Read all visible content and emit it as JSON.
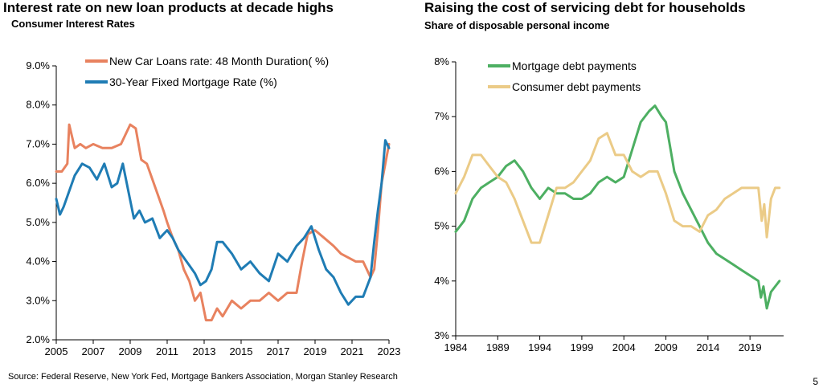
{
  "left": {
    "title": "Interest rate on new loan products at decade highs",
    "subtitle": "Consumer Interest Rates"
  },
  "right": {
    "title": "Raising the cost of servicing debt for households",
    "subtitle": "Share of disposable personal income"
  },
  "footer": {
    "source": "Source: Federal Reserve, New York Fed, Mortgage Bankers Association, Morgan Stanley Research",
    "page_number": "5"
  },
  "colors": {
    "car_loans": "#E8825F",
    "mortgage_rate": "#1F7CB4",
    "mortgage_debt": "#4DAF62",
    "consumer_debt": "#EBCB87"
  },
  "chart_data": [
    {
      "type": "line",
      "title": "Interest rate on new loan products at decade highs",
      "subtitle": "Consumer Interest Rates",
      "ylim": [
        2.0,
        9.0
      ],
      "xlim": [
        2005,
        2023
      ],
      "yticks": [
        "2.0%",
        "3.0%",
        "4.0%",
        "5.0%",
        "6.0%",
        "7.0%",
        "8.0%",
        "9.0%"
      ],
      "ytick_values": [
        2,
        3,
        4,
        5,
        6,
        7,
        8,
        9
      ],
      "xticks": [
        "2005",
        "2007",
        "2009",
        "2011",
        "2013",
        "2015",
        "2017",
        "2019",
        "2021",
        "2023"
      ],
      "xtick_values": [
        2005,
        2007,
        2009,
        2011,
        2013,
        2015,
        2017,
        2019,
        2021,
        2023
      ],
      "legend_position": "top-center",
      "series": [
        {
          "name": "New Car Loans rate: 48 Month Duration( %)",
          "color": "#E8825F",
          "x": [
            2005.0,
            2005.3,
            2005.6,
            2005.7,
            2006.0,
            2006.3,
            2006.6,
            2007.0,
            2007.5,
            2008.0,
            2008.5,
            2009.0,
            2009.3,
            2009.6,
            2009.9,
            2010.2,
            2010.5,
            2010.8,
            2011.0,
            2011.3,
            2011.6,
            2011.9,
            2012.2,
            2012.5,
            2012.8,
            2013.1,
            2013.4,
            2013.7,
            2014.0,
            2014.5,
            2015.0,
            2015.5,
            2016.0,
            2016.5,
            2017.0,
            2017.5,
            2018.0,
            2018.3,
            2018.6,
            2019.0,
            2019.5,
            2020.0,
            2020.4,
            2020.8,
            2021.2,
            2021.6,
            2022.0,
            2022.2,
            2022.4,
            2022.6,
            2022.8,
            2023.0
          ],
          "y": [
            6.3,
            6.3,
            6.5,
            7.5,
            6.9,
            7.0,
            6.9,
            7.0,
            6.9,
            6.9,
            7.0,
            7.5,
            7.4,
            6.6,
            6.5,
            6.1,
            5.7,
            5.3,
            5.0,
            4.6,
            4.3,
            3.8,
            3.5,
            3.0,
            3.2,
            2.5,
            2.5,
            2.8,
            2.6,
            3.0,
            2.8,
            3.0,
            3.0,
            3.2,
            3.0,
            3.2,
            3.2,
            4.0,
            4.7,
            4.8,
            4.6,
            4.4,
            4.2,
            4.1,
            4.0,
            4.0,
            3.6,
            3.8,
            4.8,
            6.0,
            6.5,
            7.0
          ]
        },
        {
          "name": "30-Year Fixed Mortgage Rate (%)",
          "color": "#1F7CB4",
          "x": [
            2005.0,
            2005.2,
            2005.4,
            2005.7,
            2006.0,
            2006.4,
            2006.8,
            2007.2,
            2007.6,
            2008.0,
            2008.3,
            2008.6,
            2008.9,
            2009.2,
            2009.5,
            2009.8,
            2010.2,
            2010.6,
            2011.0,
            2011.3,
            2011.6,
            2011.9,
            2012.2,
            2012.5,
            2012.8,
            2013.1,
            2013.4,
            2013.7,
            2014.0,
            2014.5,
            2015.0,
            2015.5,
            2016.0,
            2016.5,
            2017.0,
            2017.5,
            2018.0,
            2018.4,
            2018.8,
            2019.2,
            2019.6,
            2020.0,
            2020.4,
            2020.8,
            2021.2,
            2021.6,
            2022.0,
            2022.2,
            2022.4,
            2022.6,
            2022.8,
            2023.0
          ],
          "y": [
            5.6,
            5.2,
            5.4,
            5.8,
            6.2,
            6.5,
            6.4,
            6.1,
            6.5,
            5.9,
            6.0,
            6.5,
            5.8,
            5.1,
            5.3,
            5.0,
            5.1,
            4.6,
            4.8,
            4.6,
            4.3,
            4.1,
            3.9,
            3.7,
            3.4,
            3.5,
            3.8,
            4.5,
            4.5,
            4.2,
            3.8,
            4.0,
            3.7,
            3.5,
            4.2,
            4.0,
            4.4,
            4.6,
            4.9,
            4.3,
            3.8,
            3.6,
            3.2,
            2.9,
            3.1,
            3.1,
            3.6,
            4.5,
            5.3,
            6.0,
            7.1,
            6.9
          ]
        }
      ]
    },
    {
      "type": "line",
      "title": "Raising the cost of servicing debt for households",
      "subtitle": "Share of disposable personal income",
      "ylim": [
        3,
        8
      ],
      "xlim": [
        1984,
        2023
      ],
      "yticks": [
        "3%",
        "4%",
        "5%",
        "6%",
        "7%",
        "8%"
      ],
      "ytick_values": [
        3,
        4,
        5,
        6,
        7,
        8
      ],
      "xticks": [
        "1984",
        "1989",
        "1994",
        "1999",
        "2004",
        "2009",
        "2014",
        "2019"
      ],
      "xtick_values": [
        1984,
        1989,
        1994,
        1999,
        2004,
        2009,
        2014,
        2019
      ],
      "legend_position": "top-left",
      "series": [
        {
          "name": "Mortgage debt payments",
          "color": "#4DAF62",
          "x": [
            1984,
            1985,
            1986,
            1987,
            1988,
            1989,
            1990,
            1991,
            1992,
            1993,
            1994,
            1995,
            1996,
            1997,
            1998,
            1999,
            2000,
            2001,
            2002,
            2003,
            2004,
            2005,
            2006,
            2007,
            2007.7,
            2008.5,
            2009,
            2010,
            2011,
            2012,
            2013,
            2014,
            2015,
            2016,
            2017,
            2018,
            2019,
            2020,
            2020.3,
            2020.6,
            2021,
            2021.5,
            2022,
            2022.5
          ],
          "y": [
            4.9,
            5.1,
            5.5,
            5.7,
            5.8,
            5.9,
            6.1,
            6.2,
            6.0,
            5.7,
            5.5,
            5.7,
            5.6,
            5.6,
            5.5,
            5.5,
            5.6,
            5.8,
            5.9,
            5.8,
            5.9,
            6.4,
            6.9,
            7.1,
            7.2,
            7.0,
            6.9,
            6.0,
            5.6,
            5.3,
            5.0,
            4.7,
            4.5,
            4.4,
            4.3,
            4.2,
            4.1,
            4.0,
            3.7,
            3.9,
            3.5,
            3.8,
            3.9,
            4.0
          ]
        },
        {
          "name": "Consumer debt payments",
          "color": "#EBCB87",
          "x": [
            1984,
            1985,
            1986,
            1987,
            1988,
            1989,
            1990,
            1991,
            1992,
            1993,
            1994,
            1995,
            1996,
            1997,
            1998,
            1999,
            2000,
            2001,
            2002,
            2003,
            2004,
            2005,
            2006,
            2007,
            2008,
            2009,
            2010,
            2011,
            2012,
            2013,
            2014,
            2015,
            2016,
            2017,
            2018,
            2019,
            2020,
            2020.4,
            2020.7,
            2021,
            2021.5,
            2022,
            2022.5
          ],
          "y": [
            5.6,
            5.9,
            6.3,
            6.3,
            6.1,
            5.9,
            5.8,
            5.5,
            5.1,
            4.7,
            4.7,
            5.2,
            5.7,
            5.7,
            5.8,
            6.0,
            6.2,
            6.6,
            6.7,
            6.3,
            6.3,
            6.0,
            5.9,
            6.0,
            6.0,
            5.6,
            5.1,
            5.0,
            5.0,
            4.9,
            5.2,
            5.3,
            5.5,
            5.6,
            5.7,
            5.7,
            5.7,
            5.1,
            5.4,
            4.8,
            5.5,
            5.7,
            5.7
          ]
        }
      ]
    }
  ]
}
